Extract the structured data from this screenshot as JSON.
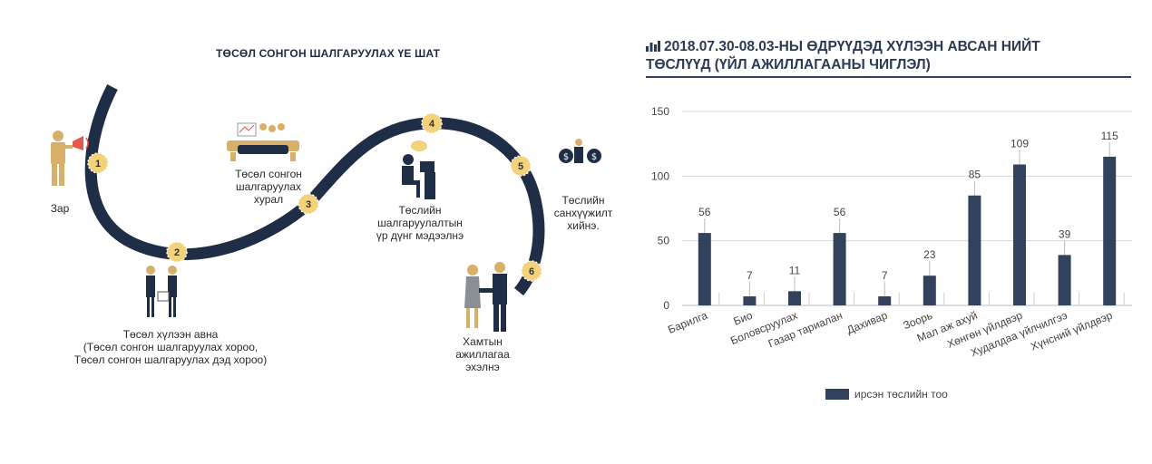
{
  "infographic": {
    "title": "ТӨСӨЛ СОНГОН ШАЛГАРУУЛАХ ҮЕ ШАТ",
    "steps": [
      {
        "number": "1",
        "lines": [
          "Зар"
        ]
      },
      {
        "number": "2",
        "lines": [
          "Төсөл хүлээн авна",
          "(Төсөл сонгон шалгаруулах хороо,",
          "Төсөл сонгон шалгаруулах дэд хороо)"
        ]
      },
      {
        "number": "3",
        "lines": [
          "Төсөл сонгон",
          "шалгаруулах",
          "хурал"
        ]
      },
      {
        "number": "4",
        "lines": [
          "Төслийн",
          "шалгаруулалтын",
          "үр дүнг мэдээлнэ"
        ]
      },
      {
        "number": "5",
        "lines": [
          "Төслийн",
          "санхүүжилт",
          "хийнэ."
        ]
      },
      {
        "number": "6",
        "lines": [
          "Хамтын",
          "ажиллагаа",
          "эхэлнэ"
        ]
      }
    ],
    "colors": {
      "road": "#1f2d47",
      "badge": "#f3d27a",
      "figure": "#1f2d47",
      "accent": "#d9b06a"
    },
    "icons": [
      "megaphone-person-icon",
      "meeting-people-icon",
      "presentation-icon",
      "computer-worker-icon",
      "money-bags-icon",
      "handshake-icon"
    ]
  },
  "chart_data": {
    "type": "bar",
    "title_lines": [
      "2018.07.30-08.03-НЫ ӨДРҮҮДЭД ХҮЛЭЭН АВСАН НИЙТ",
      "ТӨСЛҮҮД (ҮЙЛ АЖИЛЛАГААНЫ ЧИГЛЭЛ)"
    ],
    "title_icon": "bar-chart-icon",
    "categories": [
      "Барилга",
      "Био",
      "Боловсруулах",
      "Газар тариалан",
      "Дахивар",
      "Зоорь",
      "Мал аж ахуй",
      "Хөнгөн үйлдвэр",
      "Худалдаа үйлчилгээ",
      "Хүнсний үйлдвэр"
    ],
    "series": [
      {
        "name": "ирсэн төслийн тоо",
        "values": [
          56,
          7,
          11,
          56,
          7,
          23,
          85,
          109,
          39,
          115
        ]
      }
    ],
    "ylim": [
      0,
      150
    ],
    "yticks": [
      0,
      50,
      100,
      150
    ],
    "grid": true,
    "legend_position": "bottom",
    "bar_color": "#33425c"
  }
}
